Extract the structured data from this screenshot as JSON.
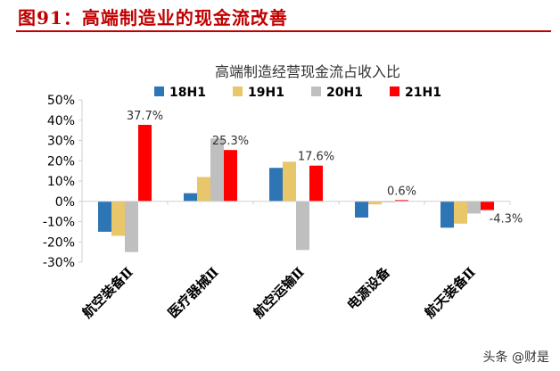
{
  "figure": {
    "title": "图91：高端制造业的现金流改善",
    "watermark": "头条 @财是"
  },
  "colors": {
    "title_red": "#c00000",
    "axis": "#d0d0d0"
  },
  "chart_data": {
    "type": "bar",
    "title": "高端制造经营现金流占收入比",
    "categories": [
      "航空装备Ⅱ",
      "医疗器械Ⅱ",
      "航空运输Ⅱ",
      "电源设备",
      "航天装备Ⅱ"
    ],
    "series": [
      {
        "name": "18H1",
        "color": "#2e75b6",
        "values": [
          -15,
          4,
          16.5,
          -8,
          -13
        ]
      },
      {
        "name": "19H1",
        "color": "#e8c66a",
        "values": [
          -17,
          12,
          19.5,
          -1.5,
          -11
        ]
      },
      {
        "name": "20H1",
        "color": "#bfbfbf",
        "values": [
          -25,
          31,
          -24,
          -0.5,
          -6
        ]
      },
      {
        "name": "21H1",
        "color": "#ff0000",
        "values": [
          37.7,
          25.3,
          17.6,
          0.6,
          -4.3
        ]
      }
    ],
    "data_labels": [
      {
        "category": 0,
        "series": 3,
        "text": "37.7%"
      },
      {
        "category": 1,
        "series": 3,
        "text": "25.3%"
      },
      {
        "category": 2,
        "series": 3,
        "text": "17.6%"
      },
      {
        "category": 3,
        "series": 3,
        "text": "0.6%"
      },
      {
        "category": 4,
        "series": 3,
        "text": "-4.3%"
      }
    ],
    "ylim": [
      -30,
      50
    ],
    "yticks": [
      -30,
      -20,
      -10,
      0,
      10,
      20,
      30,
      40,
      50
    ],
    "ytick_labels": [
      "-30%",
      "-20%",
      "-10%",
      "0%",
      "10%",
      "20%",
      "30%",
      "40%",
      "50%"
    ],
    "legend_position": "top",
    "grid": false
  }
}
